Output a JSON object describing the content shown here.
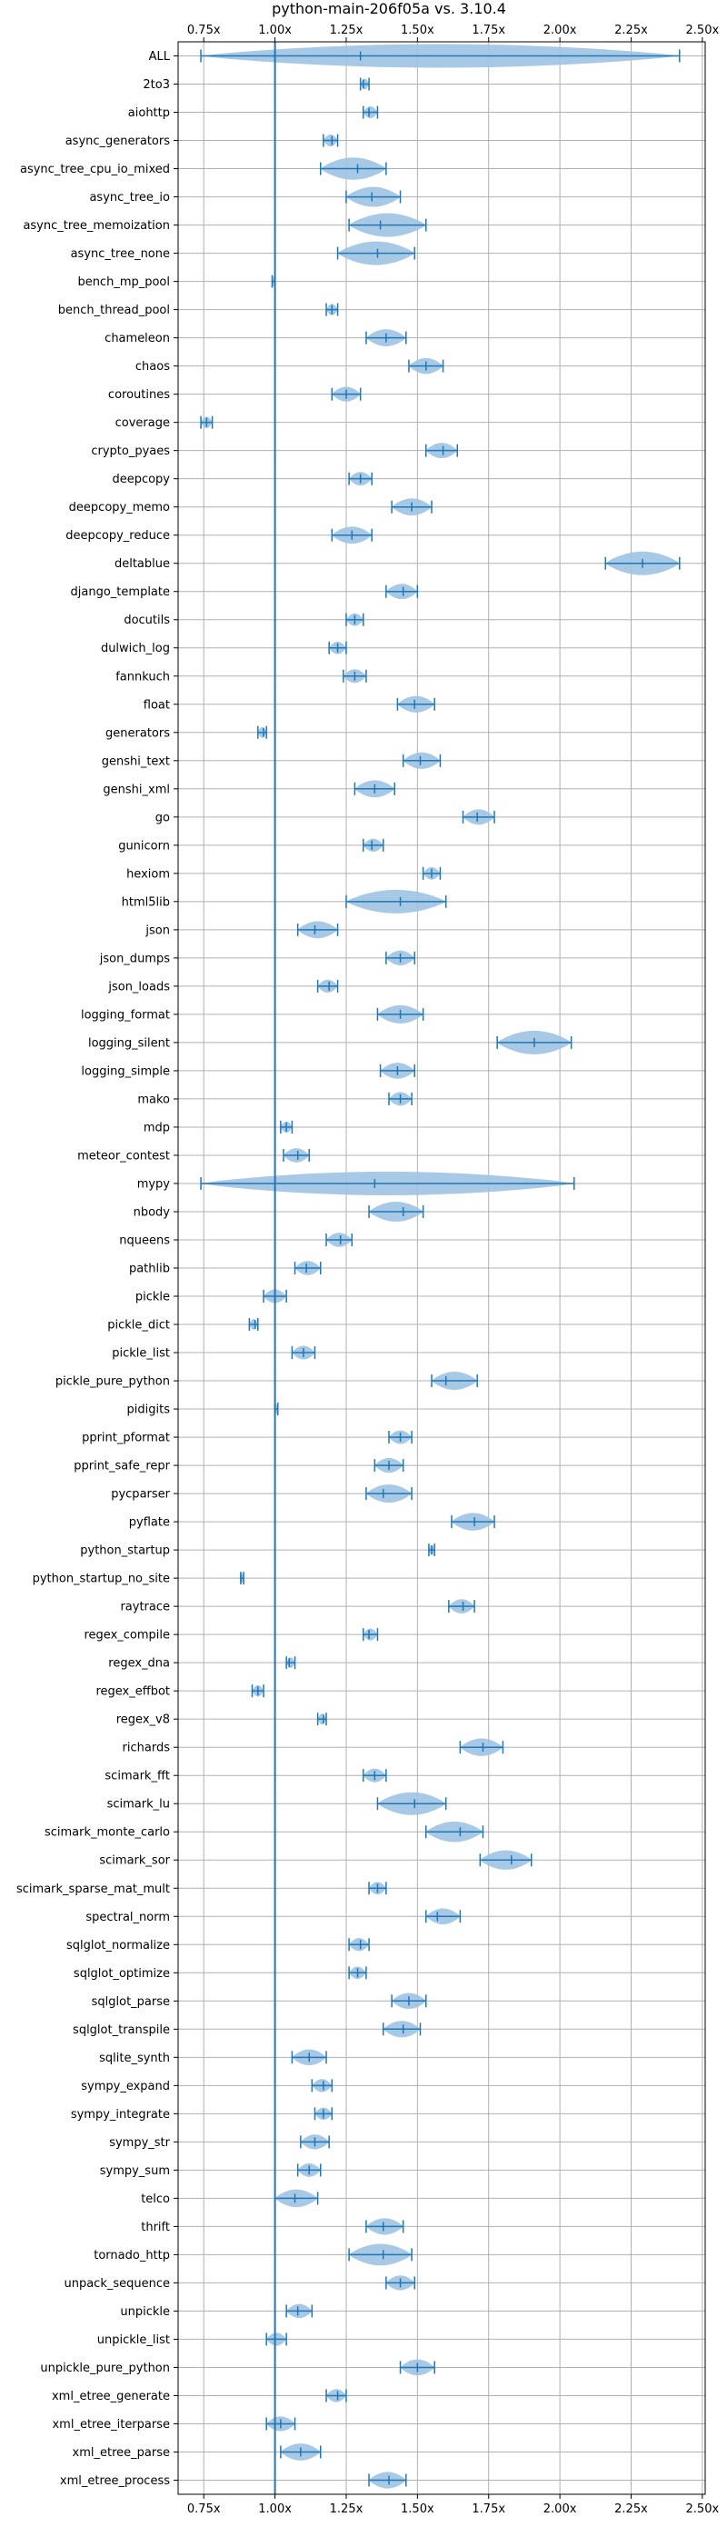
{
  "chart_data": {
    "type": "violin",
    "title": "python-main-206f05a vs. 3.10.4",
    "xlabel": "",
    "ylabel": "",
    "xlim": [
      0.66,
      2.51
    ],
    "x_ticks": [
      0.75,
      1.0,
      1.25,
      1.5,
      1.75,
      2.0,
      2.25,
      2.5
    ],
    "x_tick_labels": [
      "0.75x",
      "1.00x",
      "1.25x",
      "1.50x",
      "1.75x",
      "2.00x",
      "2.25x",
      "2.50x"
    ],
    "reference_line": 1.0,
    "grid": true,
    "colors": {
      "violin": "#9ec3e3",
      "lines": "#1f77b4"
    },
    "benchmarks": [
      {
        "name": "ALL",
        "min": 0.74,
        "max": 2.42,
        "median": 1.3
      },
      {
        "name": "2to3",
        "min": 1.3,
        "max": 1.33,
        "median": 1.31
      },
      {
        "name": "aiohttp",
        "min": 1.31,
        "max": 1.36,
        "median": 1.33
      },
      {
        "name": "async_generators",
        "min": 1.17,
        "max": 1.22,
        "median": 1.2
      },
      {
        "name": "async_tree_cpu_io_mixed",
        "min": 1.16,
        "max": 1.39,
        "median": 1.29
      },
      {
        "name": "async_tree_io",
        "min": 1.25,
        "max": 1.44,
        "median": 1.34
      },
      {
        "name": "async_tree_memoization",
        "min": 1.26,
        "max": 1.53,
        "median": 1.37
      },
      {
        "name": "async_tree_none",
        "min": 1.22,
        "max": 1.49,
        "median": 1.36
      },
      {
        "name": "bench_mp_pool",
        "min": 0.99,
        "max": 1.0,
        "median": 1.0
      },
      {
        "name": "bench_thread_pool",
        "min": 1.18,
        "max": 1.22,
        "median": 1.2
      },
      {
        "name": "chameleon",
        "min": 1.32,
        "max": 1.46,
        "median": 1.39
      },
      {
        "name": "chaos",
        "min": 1.47,
        "max": 1.59,
        "median": 1.53
      },
      {
        "name": "coroutines",
        "min": 1.2,
        "max": 1.3,
        "median": 1.25
      },
      {
        "name": "coverage",
        "min": 0.74,
        "max": 0.78,
        "median": 0.76
      },
      {
        "name": "crypto_pyaes",
        "min": 1.53,
        "max": 1.64,
        "median": 1.59
      },
      {
        "name": "deepcopy",
        "min": 1.26,
        "max": 1.34,
        "median": 1.3
      },
      {
        "name": "deepcopy_memo",
        "min": 1.41,
        "max": 1.55,
        "median": 1.48
      },
      {
        "name": "deepcopy_reduce",
        "min": 1.2,
        "max": 1.34,
        "median": 1.27
      },
      {
        "name": "deltablue",
        "min": 2.16,
        "max": 2.42,
        "median": 2.29
      },
      {
        "name": "django_template",
        "min": 1.39,
        "max": 1.5,
        "median": 1.45
      },
      {
        "name": "docutils",
        "min": 1.25,
        "max": 1.31,
        "median": 1.28
      },
      {
        "name": "dulwich_log",
        "min": 1.19,
        "max": 1.25,
        "median": 1.22
      },
      {
        "name": "fannkuch",
        "min": 1.24,
        "max": 1.32,
        "median": 1.28
      },
      {
        "name": "float",
        "min": 1.43,
        "max": 1.56,
        "median": 1.49
      },
      {
        "name": "generators",
        "min": 0.94,
        "max": 0.97,
        "median": 0.96
      },
      {
        "name": "genshi_text",
        "min": 1.45,
        "max": 1.58,
        "median": 1.51
      },
      {
        "name": "genshi_xml",
        "min": 1.28,
        "max": 1.42,
        "median": 1.35
      },
      {
        "name": "go",
        "min": 1.66,
        "max": 1.77,
        "median": 1.71
      },
      {
        "name": "gunicorn",
        "min": 1.31,
        "max": 1.38,
        "median": 1.34
      },
      {
        "name": "hexiom",
        "min": 1.52,
        "max": 1.58,
        "median": 1.55
      },
      {
        "name": "html5lib",
        "min": 1.25,
        "max": 1.6,
        "median": 1.44
      },
      {
        "name": "json",
        "min": 1.08,
        "max": 1.22,
        "median": 1.14
      },
      {
        "name": "json_dumps",
        "min": 1.39,
        "max": 1.49,
        "median": 1.44
      },
      {
        "name": "json_loads",
        "min": 1.15,
        "max": 1.22,
        "median": 1.19
      },
      {
        "name": "logging_format",
        "min": 1.36,
        "max": 1.52,
        "median": 1.44
      },
      {
        "name": "logging_silent",
        "min": 1.78,
        "max": 2.04,
        "median": 1.91
      },
      {
        "name": "logging_simple",
        "min": 1.37,
        "max": 1.49,
        "median": 1.43
      },
      {
        "name": "mako",
        "min": 1.4,
        "max": 1.48,
        "median": 1.44
      },
      {
        "name": "mdp",
        "min": 1.02,
        "max": 1.06,
        "median": 1.04
      },
      {
        "name": "meteor_contest",
        "min": 1.03,
        "max": 1.12,
        "median": 1.08
      },
      {
        "name": "mypy",
        "min": 0.74,
        "max": 2.05,
        "median": 1.35
      },
      {
        "name": "nbody",
        "min": 1.33,
        "max": 1.52,
        "median": 1.45
      },
      {
        "name": "nqueens",
        "min": 1.18,
        "max": 1.27,
        "median": 1.23
      },
      {
        "name": "pathlib",
        "min": 1.07,
        "max": 1.16,
        "median": 1.11
      },
      {
        "name": "pickle",
        "min": 0.96,
        "max": 1.04,
        "median": 1.0
      },
      {
        "name": "pickle_dict",
        "min": 0.91,
        "max": 0.94,
        "median": 0.93
      },
      {
        "name": "pickle_list",
        "min": 1.06,
        "max": 1.14,
        "median": 1.1
      },
      {
        "name": "pickle_pure_python",
        "min": 1.55,
        "max": 1.71,
        "median": 1.6
      },
      {
        "name": "pidigits",
        "min": 1.0,
        "max": 1.01,
        "median": 1.0
      },
      {
        "name": "pprint_pformat",
        "min": 1.4,
        "max": 1.48,
        "median": 1.44
      },
      {
        "name": "pprint_safe_repr",
        "min": 1.35,
        "max": 1.45,
        "median": 1.4
      },
      {
        "name": "pycparser",
        "min": 1.32,
        "max": 1.48,
        "median": 1.38
      },
      {
        "name": "pyflate",
        "min": 1.62,
        "max": 1.77,
        "median": 1.7
      },
      {
        "name": "python_startup",
        "min": 1.54,
        "max": 1.56,
        "median": 1.55
      },
      {
        "name": "python_startup_no_site",
        "min": 0.88,
        "max": 0.89,
        "median": 0.88
      },
      {
        "name": "raytrace",
        "min": 1.61,
        "max": 1.7,
        "median": 1.66
      },
      {
        "name": "regex_compile",
        "min": 1.31,
        "max": 1.36,
        "median": 1.33
      },
      {
        "name": "regex_dna",
        "min": 1.04,
        "max": 1.07,
        "median": 1.05
      },
      {
        "name": "regex_effbot",
        "min": 0.92,
        "max": 0.96,
        "median": 0.94
      },
      {
        "name": "regex_v8",
        "min": 1.15,
        "max": 1.18,
        "median": 1.17
      },
      {
        "name": "richards",
        "min": 1.65,
        "max": 1.8,
        "median": 1.73
      },
      {
        "name": "scimark_fft",
        "min": 1.31,
        "max": 1.39,
        "median": 1.35
      },
      {
        "name": "scimark_lu",
        "min": 1.36,
        "max": 1.6,
        "median": 1.49
      },
      {
        "name": "scimark_monte_carlo",
        "min": 1.53,
        "max": 1.73,
        "median": 1.65
      },
      {
        "name": "scimark_sor",
        "min": 1.72,
        "max": 1.9,
        "median": 1.83
      },
      {
        "name": "scimark_sparse_mat_mult",
        "min": 1.33,
        "max": 1.39,
        "median": 1.36
      },
      {
        "name": "spectral_norm",
        "min": 1.53,
        "max": 1.65,
        "median": 1.57
      },
      {
        "name": "sqlglot_normalize",
        "min": 1.26,
        "max": 1.33,
        "median": 1.3
      },
      {
        "name": "sqlglot_optimize",
        "min": 1.26,
        "max": 1.32,
        "median": 1.29
      },
      {
        "name": "sqlglot_parse",
        "min": 1.41,
        "max": 1.53,
        "median": 1.47
      },
      {
        "name": "sqlglot_transpile",
        "min": 1.38,
        "max": 1.51,
        "median": 1.45
      },
      {
        "name": "sqlite_synth",
        "min": 1.06,
        "max": 1.18,
        "median": 1.12
      },
      {
        "name": "sympy_expand",
        "min": 1.13,
        "max": 1.2,
        "median": 1.17
      },
      {
        "name": "sympy_integrate",
        "min": 1.14,
        "max": 1.2,
        "median": 1.17
      },
      {
        "name": "sympy_str",
        "min": 1.09,
        "max": 1.19,
        "median": 1.14
      },
      {
        "name": "sympy_sum",
        "min": 1.08,
        "max": 1.16,
        "median": 1.12
      },
      {
        "name": "telco",
        "min": 1.0,
        "max": 1.15,
        "median": 1.07
      },
      {
        "name": "thrift",
        "min": 1.32,
        "max": 1.45,
        "median": 1.38
      },
      {
        "name": "tornado_http",
        "min": 1.26,
        "max": 1.48,
        "median": 1.38
      },
      {
        "name": "unpack_sequence",
        "min": 1.39,
        "max": 1.49,
        "median": 1.44
      },
      {
        "name": "unpickle",
        "min": 1.04,
        "max": 1.13,
        "median": 1.08
      },
      {
        "name": "unpickle_list",
        "min": 0.97,
        "max": 1.04,
        "median": 1.0
      },
      {
        "name": "unpickle_pure_python",
        "min": 1.44,
        "max": 1.56,
        "median": 1.5
      },
      {
        "name": "xml_etree_generate",
        "min": 1.18,
        "max": 1.25,
        "median": 1.22
      },
      {
        "name": "xml_etree_iterparse",
        "min": 0.97,
        "max": 1.07,
        "median": 1.02
      },
      {
        "name": "xml_etree_parse",
        "min": 1.02,
        "max": 1.16,
        "median": 1.09
      },
      {
        "name": "xml_etree_process",
        "min": 1.33,
        "max": 1.46,
        "median": 1.4
      }
    ]
  }
}
